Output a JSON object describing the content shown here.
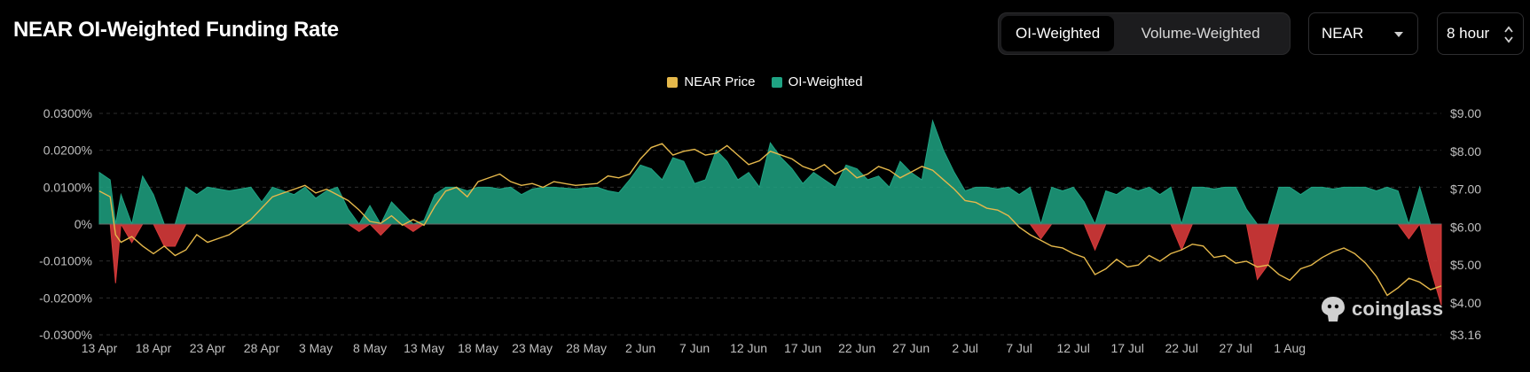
{
  "header": {
    "title": "NEAR OI-Weighted Funding Rate"
  },
  "toggle": {
    "options": [
      "OI-Weighted",
      "Volume-Weighted"
    ],
    "active": 0
  },
  "coin_select": {
    "value": "NEAR"
  },
  "interval_select": {
    "value": "8 hour"
  },
  "watermark": {
    "text": "coinglass"
  },
  "colors": {
    "price": "#e5b84b",
    "positive": "#1fa383",
    "negative": "#d63a3a",
    "background": "#000000"
  },
  "chart_data": {
    "type": "area",
    "grid": "horizontal-dashed",
    "legend_position": "top-center",
    "legend": [
      "NEAR Price",
      "OI-Weighted"
    ],
    "x_ticks": [
      "13 Apr",
      "18 Apr",
      "23 Apr",
      "28 Apr",
      "3 May",
      "8 May",
      "13 May",
      "18 May",
      "23 May",
      "28 May",
      "2 Jun",
      "7 Jun",
      "12 Jun",
      "17 Jun",
      "22 Jun",
      "27 Jun",
      "2 Jul",
      "7 Jul",
      "12 Jul",
      "17 Jul",
      "22 Jul",
      "27 Jul",
      "1 Aug"
    ],
    "y_left": {
      "ticks": [
        "0.0300%",
        "0.0200%",
        "0.0100%",
        "0%",
        "-0.0100%",
        "-0.0200%",
        "-0.0300%"
      ],
      "ylim": [
        -0.03,
        0.03
      ],
      "unit": "%"
    },
    "y_right": {
      "ticks": [
        "$9.00",
        "$8.00",
        "$7.00",
        "$6.00",
        "$5.00",
        "$4.00",
        "$3.16"
      ],
      "ylim": [
        3.16,
        9.0
      ],
      "unit": "$"
    },
    "x_range_days": [
      0,
      124
    ],
    "series": [
      {
        "name": "NEAR Price",
        "axis": "right",
        "points": [
          [
            0,
            6.95
          ],
          [
            1,
            6.8
          ],
          [
            1.5,
            5.8
          ],
          [
            2,
            5.6
          ],
          [
            3,
            5.75
          ],
          [
            4,
            5.5
          ],
          [
            5,
            5.3
          ],
          [
            6,
            5.5
          ],
          [
            7,
            5.25
          ],
          [
            8,
            5.4
          ],
          [
            9,
            5.8
          ],
          [
            10,
            5.6
          ],
          [
            12,
            5.8
          ],
          [
            14,
            6.2
          ],
          [
            15,
            6.5
          ],
          [
            16,
            6.8
          ],
          [
            17,
            6.9
          ],
          [
            18,
            7.0
          ],
          [
            19,
            7.1
          ],
          [
            20,
            6.9
          ],
          [
            21,
            7.0
          ],
          [
            22,
            6.85
          ],
          [
            23,
            6.7
          ],
          [
            24,
            6.45
          ],
          [
            25,
            6.15
          ],
          [
            26,
            6.1
          ],
          [
            27,
            6.3
          ],
          [
            28,
            6.05
          ],
          [
            29,
            6.2
          ],
          [
            30,
            6.05
          ],
          [
            31,
            6.55
          ],
          [
            32,
            6.95
          ],
          [
            33,
            7.05
          ],
          [
            34,
            6.8
          ],
          [
            35,
            7.2
          ],
          [
            36,
            7.3
          ],
          [
            37,
            7.4
          ],
          [
            38,
            7.2
          ],
          [
            39,
            7.1
          ],
          [
            40,
            7.15
          ],
          [
            41,
            7.05
          ],
          [
            42,
            7.2
          ],
          [
            44,
            7.1
          ],
          [
            46,
            7.15
          ],
          [
            47,
            7.35
          ],
          [
            48,
            7.3
          ],
          [
            49,
            7.4
          ],
          [
            50,
            7.8
          ],
          [
            51,
            8.1
          ],
          [
            52,
            8.2
          ],
          [
            53,
            7.9
          ],
          [
            54,
            8.0
          ],
          [
            55,
            8.05
          ],
          [
            56,
            7.9
          ],
          [
            57,
            7.95
          ],
          [
            58,
            8.15
          ],
          [
            59,
            7.9
          ],
          [
            60,
            7.65
          ],
          [
            61,
            7.75
          ],
          [
            62,
            8.0
          ],
          [
            63,
            7.9
          ],
          [
            64,
            7.8
          ],
          [
            65,
            7.6
          ],
          [
            66,
            7.5
          ],
          [
            67,
            7.65
          ],
          [
            68,
            7.4
          ],
          [
            69,
            7.55
          ],
          [
            70,
            7.3
          ],
          [
            71,
            7.4
          ],
          [
            72,
            7.6
          ],
          [
            73,
            7.5
          ],
          [
            74,
            7.3
          ],
          [
            75,
            7.45
          ],
          [
            76,
            7.6
          ],
          [
            77,
            7.5
          ],
          [
            78,
            7.25
          ],
          [
            79,
            7.0
          ],
          [
            80,
            6.7
          ],
          [
            81,
            6.65
          ],
          [
            82,
            6.5
          ],
          [
            83,
            6.45
          ],
          [
            84,
            6.3
          ],
          [
            85,
            6.0
          ],
          [
            86,
            5.8
          ],
          [
            87,
            5.65
          ],
          [
            88,
            5.5
          ],
          [
            89,
            5.45
          ],
          [
            90,
            5.3
          ],
          [
            91,
            5.2
          ],
          [
            92,
            4.75
          ],
          [
            93,
            4.9
          ],
          [
            94,
            5.15
          ],
          [
            95,
            4.95
          ],
          [
            96,
            5.0
          ],
          [
            97,
            5.25
          ],
          [
            98,
            5.1
          ],
          [
            99,
            5.3
          ],
          [
            100,
            5.4
          ],
          [
            101,
            5.55
          ],
          [
            102,
            5.5
          ],
          [
            103,
            5.2
          ],
          [
            104,
            5.25
          ],
          [
            105,
            5.05
          ],
          [
            106,
            5.1
          ],
          [
            107,
            4.95
          ],
          [
            108,
            5.0
          ],
          [
            109,
            4.75
          ],
          [
            110,
            4.6
          ],
          [
            111,
            4.9
          ],
          [
            112,
            5.0
          ],
          [
            113,
            5.2
          ],
          [
            114,
            5.35
          ],
          [
            115,
            5.45
          ],
          [
            116,
            5.3
          ],
          [
            117,
            5.05
          ],
          [
            118,
            4.7
          ],
          [
            119,
            4.2
          ],
          [
            120,
            4.4
          ],
          [
            121,
            4.65
          ],
          [
            122,
            4.55
          ],
          [
            123,
            4.35
          ],
          [
            124,
            4.45
          ]
        ]
      },
      {
        "name": "OI-Weighted",
        "axis": "left",
        "points": [
          [
            0,
            0.014
          ],
          [
            1,
            0.012
          ],
          [
            1.5,
            -0.016
          ],
          [
            2,
            0.008
          ],
          [
            3,
            -0.005
          ],
          [
            4,
            0.013
          ],
          [
            5,
            0.008
          ],
          [
            6,
            -0.006
          ],
          [
            7,
            -0.006
          ],
          [
            8,
            0.01
          ],
          [
            9,
            0.008
          ],
          [
            10,
            0.01
          ],
          [
            12,
            0.009
          ],
          [
            14,
            0.01
          ],
          [
            15,
            0.006
          ],
          [
            16,
            0.01
          ],
          [
            17,
            0.009
          ],
          [
            18,
            0.008
          ],
          [
            19,
            0.01
          ],
          [
            20,
            0.007
          ],
          [
            21,
            0.009
          ],
          [
            22,
            0.01
          ],
          [
            23,
            0.004
          ],
          [
            24,
            -0.002
          ],
          [
            25,
            0.005
          ],
          [
            26,
            -0.003
          ],
          [
            27,
            0.006
          ],
          [
            28,
            0.003
          ],
          [
            29,
            -0.002
          ],
          [
            30,
            0.001
          ],
          [
            31,
            0.008
          ],
          [
            32,
            0.01
          ],
          [
            33,
            0.01
          ],
          [
            34,
            0.009
          ],
          [
            35,
            0.01
          ],
          [
            36,
            0.01
          ],
          [
            37,
            0.0095
          ],
          [
            38,
            0.01
          ],
          [
            39,
            0.008
          ],
          [
            40,
            0.0095
          ],
          [
            41,
            0.01
          ],
          [
            42,
            0.01
          ],
          [
            44,
            0.0095
          ],
          [
            46,
            0.01
          ],
          [
            47,
            0.009
          ],
          [
            48,
            0.0085
          ],
          [
            49,
            0.012
          ],
          [
            50,
            0.016
          ],
          [
            51,
            0.015
          ],
          [
            52,
            0.012
          ],
          [
            53,
            0.018
          ],
          [
            54,
            0.017
          ],
          [
            55,
            0.011
          ],
          [
            56,
            0.012
          ],
          [
            57,
            0.02
          ],
          [
            58,
            0.017
          ],
          [
            59,
            0.012
          ],
          [
            60,
            0.014
          ],
          [
            61,
            0.01
          ],
          [
            62,
            0.022
          ],
          [
            63,
            0.018
          ],
          [
            64,
            0.015
          ],
          [
            65,
            0.011
          ],
          [
            66,
            0.014
          ],
          [
            67,
            0.012
          ],
          [
            68,
            0.01
          ],
          [
            69,
            0.016
          ],
          [
            70,
            0.015
          ],
          [
            71,
            0.012
          ],
          [
            72,
            0.013
          ],
          [
            73,
            0.01
          ],
          [
            74,
            0.017
          ],
          [
            75,
            0.014
          ],
          [
            76,
            0.012
          ],
          [
            77,
            0.028
          ],
          [
            78,
            0.02
          ],
          [
            79,
            0.014
          ],
          [
            80,
            0.009
          ],
          [
            81,
            0.01
          ],
          [
            82,
            0.01
          ],
          [
            83,
            0.0095
          ],
          [
            84,
            0.01
          ],
          [
            85,
            0.008
          ],
          [
            86,
            0.01
          ],
          [
            87,
            -0.004
          ],
          [
            88,
            0.01
          ],
          [
            89,
            0.009
          ],
          [
            90,
            0.01
          ],
          [
            91,
            0.006
          ],
          [
            92,
            -0.007
          ],
          [
            93,
            0.009
          ],
          [
            94,
            0.008
          ],
          [
            95,
            0.01
          ],
          [
            96,
            0.009
          ],
          [
            97,
            0.01
          ],
          [
            98,
            0.008
          ],
          [
            99,
            0.01
          ],
          [
            100,
            -0.007
          ],
          [
            101,
            0.01
          ],
          [
            102,
            0.01
          ],
          [
            103,
            0.0095
          ],
          [
            104,
            0.01
          ],
          [
            105,
            0.01
          ],
          [
            106,
            0.004
          ],
          [
            107,
            -0.015
          ],
          [
            108,
            -0.011
          ],
          [
            109,
            0.01
          ],
          [
            110,
            0.01
          ],
          [
            111,
            0.008
          ],
          [
            112,
            0.01
          ],
          [
            113,
            0.01
          ],
          [
            114,
            0.0095
          ],
          [
            115,
            0.01
          ],
          [
            116,
            0.01
          ],
          [
            117,
            0.01
          ],
          [
            118,
            0.009
          ],
          [
            119,
            0.01
          ],
          [
            120,
            0.009
          ],
          [
            121,
            -0.004
          ],
          [
            122,
            0.01
          ],
          [
            123,
            -0.012
          ],
          [
            124,
            -0.022
          ]
        ]
      }
    ]
  }
}
